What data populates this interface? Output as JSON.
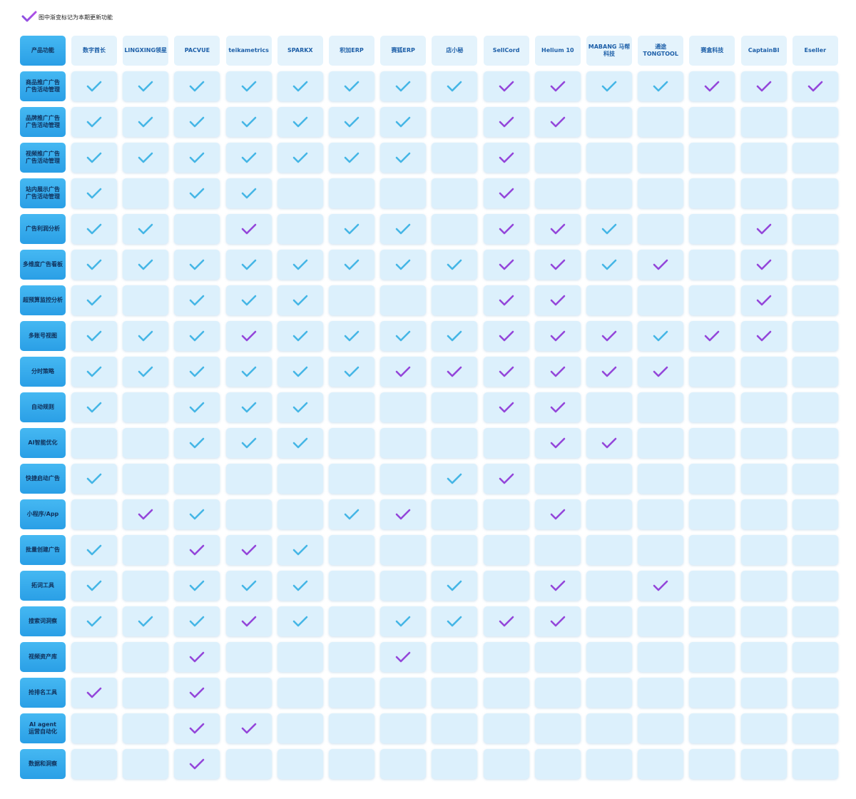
{
  "legend": "图中渐变标记为本期更新功能",
  "corner": "产品功能",
  "columns": [
    "数字酋长",
    "LINGXING领星",
    "PACVUE",
    "teikametrics",
    "SPARKX",
    "积加ERP",
    "赛狐ERP",
    "店小秘",
    "SellCord",
    "Helium 10",
    "MABANG 马帮科技",
    "通途 TONGTOOL",
    "赛盒科技",
    "CaptainBI",
    "Eseller"
  ],
  "rows": [
    {
      "label": "商品推广广告\n广告活动管理",
      "cells": [
        "b",
        "b",
        "b",
        "b",
        "b",
        "b",
        "b",
        "b",
        "p",
        "p",
        "b",
        "b",
        "p",
        "p",
        "p"
      ]
    },
    {
      "label": "品牌推广广告\n广告活动管理",
      "cells": [
        "b",
        "b",
        "b",
        "b",
        "b",
        "b",
        "b",
        "-",
        "p",
        "p",
        "-",
        "-",
        "-",
        "-",
        "-"
      ]
    },
    {
      "label": "视频推广广告\n广告活动管理",
      "cells": [
        "b",
        "b",
        "b",
        "b",
        "b",
        "b",
        "b",
        "-",
        "p",
        "-",
        "-",
        "-",
        "-",
        "-",
        "-"
      ]
    },
    {
      "label": "站内展示广告\n广告活动管理",
      "cells": [
        "b",
        "-",
        "b",
        "b",
        "-",
        "-",
        "-",
        "-",
        "p",
        "-",
        "-",
        "-",
        "-",
        "-",
        "-"
      ]
    },
    {
      "label": "广告利润分析",
      "cells": [
        "b",
        "b",
        "-",
        "p",
        "-",
        "b",
        "b",
        "-",
        "p",
        "p",
        "b",
        "-",
        "-",
        "p",
        "-"
      ]
    },
    {
      "label": "多维度广告看板",
      "cells": [
        "b",
        "b",
        "b",
        "b",
        "b",
        "b",
        "b",
        "b",
        "p",
        "p",
        "b",
        "p",
        "-",
        "p",
        "-"
      ]
    },
    {
      "label": "超预算监控分析",
      "cells": [
        "b",
        "-",
        "b",
        "b",
        "b",
        "-",
        "-",
        "-",
        "p",
        "p",
        "-",
        "-",
        "-",
        "p",
        "-"
      ]
    },
    {
      "label": "多账号视图",
      "cells": [
        "b",
        "b",
        "b",
        "p",
        "b",
        "b",
        "b",
        "b",
        "p",
        "p",
        "p",
        "b",
        "p",
        "p",
        "-"
      ]
    },
    {
      "label": "分时策略",
      "cells": [
        "b",
        "b",
        "b",
        "b",
        "b",
        "b",
        "p",
        "p",
        "p",
        "p",
        "p",
        "p",
        "-",
        "-",
        "-"
      ]
    },
    {
      "label": "自动规则",
      "cells": [
        "b",
        "-",
        "b",
        "b",
        "b",
        "-",
        "-",
        "-",
        "p",
        "p",
        "-",
        "-",
        "-",
        "-",
        "-"
      ]
    },
    {
      "label": "AI智能优化",
      "cells": [
        "-",
        "-",
        "b",
        "b",
        "b",
        "-",
        "-",
        "-",
        "-",
        "p",
        "p",
        "-",
        "-",
        "-",
        "-"
      ]
    },
    {
      "label": "快捷启动广告",
      "cells": [
        "b",
        "-",
        "-",
        "-",
        "-",
        "-",
        "-",
        "b",
        "p",
        "-",
        "-",
        "-",
        "-",
        "-",
        "-"
      ]
    },
    {
      "label": "小程序/App",
      "cells": [
        "-",
        "p",
        "b",
        "-",
        "-",
        "b",
        "p",
        "-",
        "-",
        "p",
        "-",
        "-",
        "-",
        "-",
        "-"
      ]
    },
    {
      "label": "批量创建广告",
      "cells": [
        "b",
        "-",
        "p",
        "p",
        "b",
        "-",
        "-",
        "-",
        "-",
        "-",
        "-",
        "-",
        "-",
        "-",
        "-"
      ]
    },
    {
      "label": "拓词工具",
      "cells": [
        "b",
        "-",
        "b",
        "b",
        "b",
        "-",
        "-",
        "b",
        "-",
        "p",
        "-",
        "p",
        "-",
        "-",
        "-"
      ]
    },
    {
      "label": "搜索词洞察",
      "cells": [
        "b",
        "b",
        "b",
        "p",
        "b",
        "-",
        "b",
        "b",
        "p",
        "p",
        "-",
        "-",
        "-",
        "-",
        "-"
      ]
    },
    {
      "label": "视频资产库",
      "cells": [
        "-",
        "-",
        "p",
        "-",
        "-",
        "-",
        "p",
        "-",
        "-",
        "-",
        "-",
        "-",
        "-",
        "-",
        "-"
      ]
    },
    {
      "label": "抢排名工具",
      "cells": [
        "p",
        "-",
        "p",
        "-",
        "-",
        "-",
        "-",
        "-",
        "-",
        "-",
        "-",
        "-",
        "-",
        "-",
        "-"
      ]
    },
    {
      "label": "AI agent\n运营自动化",
      "cells": [
        "-",
        "-",
        "p",
        "p",
        "-",
        "-",
        "-",
        "-",
        "-",
        "-",
        "-",
        "-",
        "-",
        "-",
        "-"
      ]
    },
    {
      "label": "数据和洞察",
      "cells": [
        "-",
        "-",
        "p",
        "-",
        "-",
        "-",
        "-",
        "-",
        "-",
        "-",
        "-",
        "-",
        "-",
        "-",
        "-"
      ]
    }
  ]
}
